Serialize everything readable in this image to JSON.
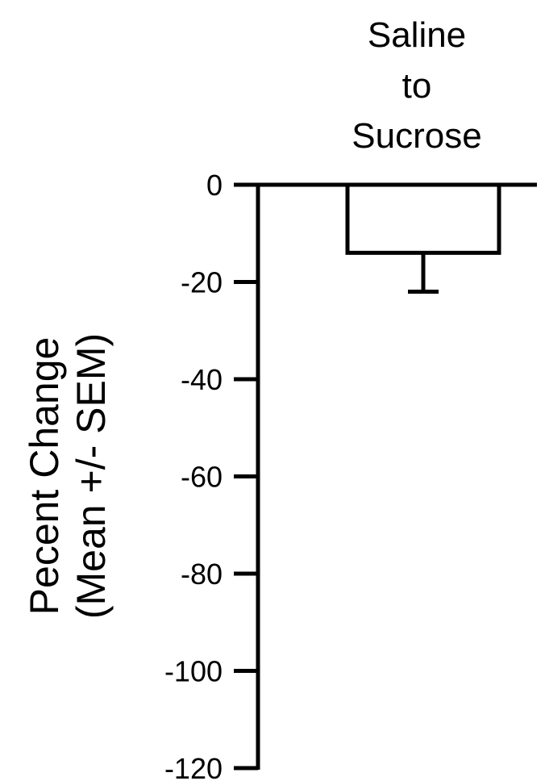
{
  "chart_data": {
    "type": "bar",
    "categories": [
      "Saline to Sucrose"
    ],
    "category_label_lines": [
      "Saline",
      "to",
      "Sucrose"
    ],
    "values": [
      -14
    ],
    "error": [
      8
    ],
    "ylabel_lines": [
      "Pecent Change",
      "(Mean +/- SEM)"
    ],
    "xlabel": "",
    "title": "",
    "ylim": [
      -120,
      0
    ],
    "yticks": [
      0,
      -20,
      -40,
      -60,
      -80,
      -100,
      -120
    ],
    "grid": false,
    "colors": {
      "bar_fill": "#ffffff",
      "stroke": "#000000"
    }
  }
}
